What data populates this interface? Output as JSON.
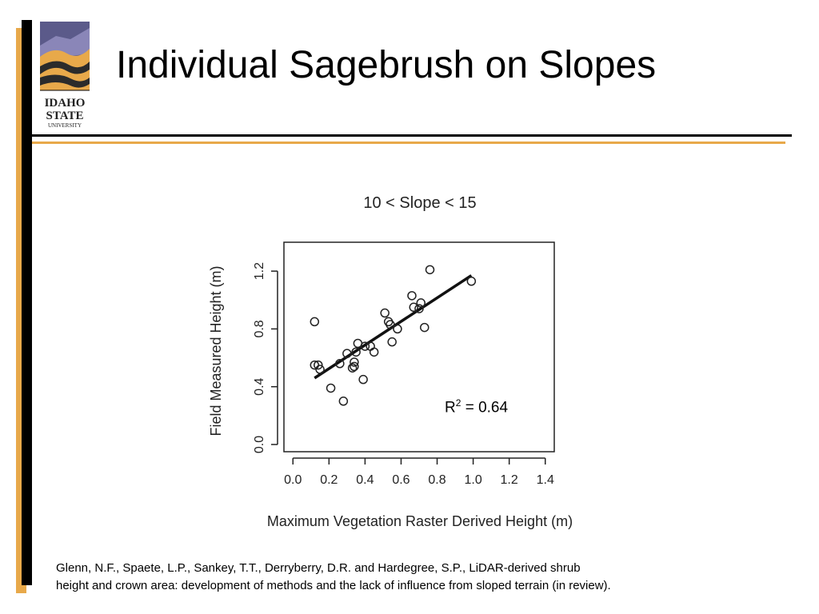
{
  "slide": {
    "title": "Individual Sagebrush on Slopes",
    "logo_text": [
      "IDAHO",
      "STATE",
      "UNIVERSITY"
    ],
    "citation_line1": "Glenn, N.F., Spaete, L.P., Sankey, T.T., Derryberry, D.R. and Hardegree, S.P., LiDAR-derived shrub",
    "citation_line2": "height and crown area: development of methods and the lack of influence from sloped terrain (in review)."
  },
  "colors": {
    "accent_gold": "#e8a94a",
    "bar_black": "#000000"
  },
  "chart_data": {
    "type": "scatter",
    "title": "10 < Slope < 15",
    "xlabel": "Maximum Vegetation Raster Derived Height (m)",
    "ylabel": "Field Measured Height (m)",
    "xlim": [
      -0.05,
      1.45
    ],
    "ylim": [
      -0.05,
      1.4
    ],
    "xticks": [
      "0.0",
      "0.2",
      "0.4",
      "0.6",
      "0.8",
      "1.0",
      "1.2",
      "1.4"
    ],
    "yticks": [
      "0.0",
      "0.4",
      "0.8",
      "1.2"
    ],
    "points": [
      [
        0.12,
        0.85
      ],
      [
        0.12,
        0.55
      ],
      [
        0.14,
        0.55
      ],
      [
        0.15,
        0.52
      ],
      [
        0.21,
        0.39
      ],
      [
        0.26,
        0.56
      ],
      [
        0.28,
        0.3
      ],
      [
        0.3,
        0.63
      ],
      [
        0.33,
        0.53
      ],
      [
        0.34,
        0.57
      ],
      [
        0.34,
        0.54
      ],
      [
        0.35,
        0.64
      ],
      [
        0.36,
        0.7
      ],
      [
        0.39,
        0.45
      ],
      [
        0.4,
        0.68
      ],
      [
        0.43,
        0.68
      ],
      [
        0.45,
        0.64
      ],
      [
        0.51,
        0.91
      ],
      [
        0.53,
        0.85
      ],
      [
        0.54,
        0.83
      ],
      [
        0.55,
        0.71
      ],
      [
        0.58,
        0.8
      ],
      [
        0.66,
        1.03
      ],
      [
        0.67,
        0.95
      ],
      [
        0.7,
        0.94
      ],
      [
        0.71,
        0.98
      ],
      [
        0.73,
        0.81
      ],
      [
        0.76,
        1.21
      ],
      [
        0.99,
        1.13
      ]
    ],
    "fit_line": {
      "x": [
        0.12,
        0.99
      ],
      "y": [
        0.46,
        1.17
      ]
    },
    "annotation": {
      "label": "R",
      "superscript": "2",
      "rest": " = 0.64"
    }
  }
}
